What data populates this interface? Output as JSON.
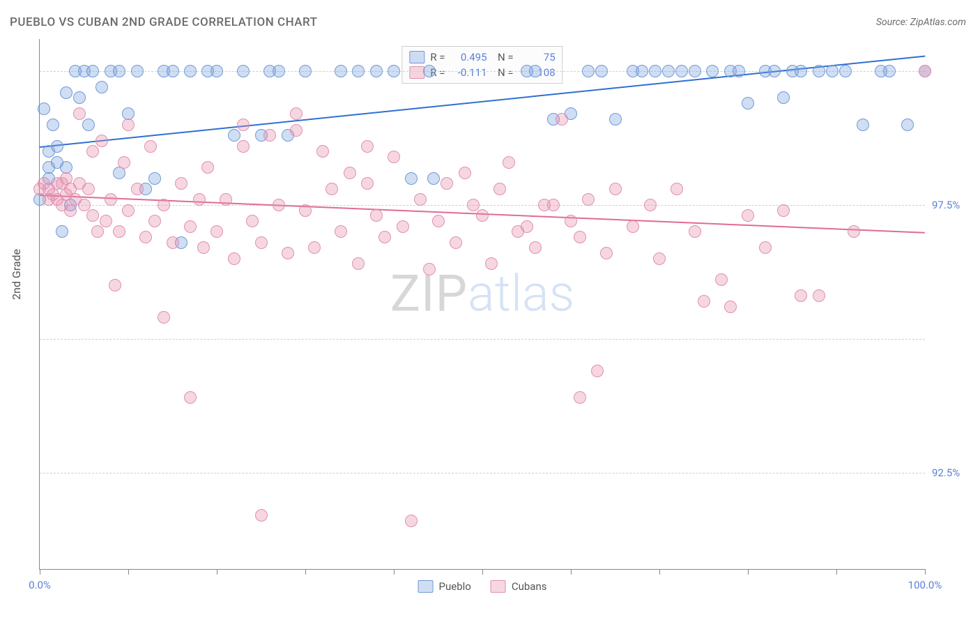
{
  "title": "PUEBLO VS CUBAN 2ND GRADE CORRELATION CHART",
  "source": "Source: ZipAtlas.com",
  "y_axis_label": "2nd Grade",
  "watermark": {
    "left": "ZIP",
    "right": "atlas"
  },
  "chart": {
    "type": "scatter",
    "xlim": [
      0,
      100
    ],
    "ylim": [
      90.7,
      100.6
    ],
    "x_ticks": [
      0,
      10,
      20,
      30,
      40,
      50,
      60,
      70,
      80,
      90,
      100
    ],
    "x_tick_labels": {
      "0": "0.0%",
      "100": "100.0%"
    },
    "y_ticks": [
      92.5,
      95.0,
      97.5,
      100.0
    ],
    "y_tick_labels": {
      "92.5": "92.5%",
      "95.0": "95.0%",
      "97.5": "97.5%",
      "100.0": "100.0%"
    },
    "grid_color": "#cfcfcf",
    "background_color": "#ffffff",
    "series": {
      "pueblo": {
        "label": "Pueblo",
        "fill": "rgba(120,160,220,0.35)",
        "stroke": "#6f99d8",
        "trend": {
          "x1": 0,
          "y1": 98.6,
          "x2": 100,
          "y2": 100.3,
          "color": "#2f6fd0",
          "width": 2
        },
        "r_label": "0.495",
        "n_label": "75",
        "points": [
          [
            0,
            97.6
          ],
          [
            0.5,
            99.3
          ],
          [
            1,
            98.0
          ],
          [
            1,
            98.2
          ],
          [
            1,
            98.5
          ],
          [
            1.5,
            99.0
          ],
          [
            2,
            98.3
          ],
          [
            2,
            98.6
          ],
          [
            2.5,
            97.0
          ],
          [
            3,
            98.2
          ],
          [
            3,
            99.6
          ],
          [
            3.5,
            97.5
          ],
          [
            4,
            100
          ],
          [
            4.5,
            99.5
          ],
          [
            5,
            100
          ],
          [
            5.5,
            99.0
          ],
          [
            6,
            100
          ],
          [
            7,
            99.7
          ],
          [
            8,
            100
          ],
          [
            9,
            98.1
          ],
          [
            9,
            100
          ],
          [
            10,
            99.2
          ],
          [
            11,
            100
          ],
          [
            12,
            97.8
          ],
          [
            13,
            98.0
          ],
          [
            14,
            100
          ],
          [
            15,
            100
          ],
          [
            16,
            96.8
          ],
          [
            17,
            100
          ],
          [
            19,
            100
          ],
          [
            20,
            100
          ],
          [
            22,
            98.8
          ],
          [
            23,
            100
          ],
          [
            25,
            98.8
          ],
          [
            26,
            100
          ],
          [
            27,
            100
          ],
          [
            28,
            98.8
          ],
          [
            30,
            100
          ],
          [
            34,
            100
          ],
          [
            36,
            100
          ],
          [
            38,
            100
          ],
          [
            40,
            100
          ],
          [
            42,
            98.0
          ],
          [
            44,
            100
          ],
          [
            44.5,
            98.0
          ],
          [
            55,
            100
          ],
          [
            56,
            100
          ],
          [
            58,
            99.1
          ],
          [
            60,
            99.2
          ],
          [
            62,
            100
          ],
          [
            63.5,
            100
          ],
          [
            65,
            99.1
          ],
          [
            67,
            100
          ],
          [
            68,
            100
          ],
          [
            69.5,
            100
          ],
          [
            71,
            100
          ],
          [
            72.5,
            100
          ],
          [
            74,
            100
          ],
          [
            76,
            100
          ],
          [
            78,
            100
          ],
          [
            79,
            100
          ],
          [
            80,
            99.4
          ],
          [
            82,
            100
          ],
          [
            83,
            100
          ],
          [
            84,
            99.5
          ],
          [
            85,
            100
          ],
          [
            86,
            100
          ],
          [
            88,
            100
          ],
          [
            89.5,
            100
          ],
          [
            91,
            100
          ],
          [
            93,
            99.0
          ],
          [
            95,
            100
          ],
          [
            96,
            100
          ],
          [
            98,
            99.0
          ],
          [
            100,
            100
          ]
        ]
      },
      "cubans": {
        "label": "Cubans",
        "fill": "rgba(230,140,170,0.35)",
        "stroke": "#e08fb0",
        "trend": {
          "x1": 0,
          "y1": 97.7,
          "x2": 100,
          "y2": 97.0,
          "color": "#e06a98",
          "width": 2
        },
        "r_label": "-0.111",
        "n_label": "108",
        "points": [
          [
            0,
            97.8
          ],
          [
            0.5,
            97.9
          ],
          [
            1,
            97.6
          ],
          [
            1,
            97.8
          ],
          [
            1.5,
            97.7
          ],
          [
            2,
            97.9
          ],
          [
            2,
            97.6
          ],
          [
            2.5,
            97.5
          ],
          [
            2.5,
            97.9
          ],
          [
            3,
            97.7
          ],
          [
            3,
            98.0
          ],
          [
            3.5,
            97.4
          ],
          [
            3.5,
            97.8
          ],
          [
            4,
            97.6
          ],
          [
            4.5,
            97.9
          ],
          [
            4.5,
            99.2
          ],
          [
            5,
            97.5
          ],
          [
            5.5,
            97.8
          ],
          [
            6,
            97.3
          ],
          [
            6,
            98.5
          ],
          [
            6.5,
            97.0
          ],
          [
            7,
            98.7
          ],
          [
            7.5,
            97.2
          ],
          [
            8,
            97.6
          ],
          [
            8.5,
            96.0
          ],
          [
            9,
            97.0
          ],
          [
            9.5,
            98.3
          ],
          [
            10,
            97.4
          ],
          [
            10,
            99.0
          ],
          [
            11,
            97.8
          ],
          [
            12,
            96.9
          ],
          [
            12.5,
            98.6
          ],
          [
            13,
            97.2
          ],
          [
            14,
            97.5
          ],
          [
            14,
            95.4
          ],
          [
            15,
            96.8
          ],
          [
            16,
            97.9
          ],
          [
            17,
            93.9
          ],
          [
            17,
            97.1
          ],
          [
            18,
            97.6
          ],
          [
            18.5,
            96.7
          ],
          [
            19,
            98.2
          ],
          [
            20,
            97.0
          ],
          [
            21,
            97.6
          ],
          [
            22,
            96.5
          ],
          [
            23,
            98.6
          ],
          [
            23,
            99.0
          ],
          [
            24,
            97.2
          ],
          [
            25,
            96.8
          ],
          [
            25,
            91.7
          ],
          [
            26,
            98.8
          ],
          [
            27,
            97.5
          ],
          [
            28,
            96.6
          ],
          [
            29,
            98.9
          ],
          [
            29,
            99.2
          ],
          [
            30,
            97.4
          ],
          [
            31,
            96.7
          ],
          [
            32,
            98.5
          ],
          [
            33,
            97.8
          ],
          [
            34,
            97.0
          ],
          [
            35,
            98.1
          ],
          [
            36,
            96.4
          ],
          [
            37,
            97.9
          ],
          [
            37,
            98.6
          ],
          [
            38,
            97.3
          ],
          [
            39,
            96.9
          ],
          [
            40,
            98.4
          ],
          [
            41,
            97.1
          ],
          [
            42,
            91.6
          ],
          [
            43,
            97.6
          ],
          [
            44,
            96.3
          ],
          [
            45,
            97.2
          ],
          [
            46,
            97.9
          ],
          [
            47,
            96.8
          ],
          [
            48,
            98.1
          ],
          [
            49,
            97.5
          ],
          [
            50,
            97.3
          ],
          [
            51,
            96.4
          ],
          [
            52,
            97.8
          ],
          [
            53,
            98.3
          ],
          [
            54,
            97.0
          ],
          [
            55,
            97.1
          ],
          [
            56,
            96.7
          ],
          [
            57,
            97.5
          ],
          [
            58,
            97.5
          ],
          [
            59,
            99.1
          ],
          [
            60,
            97.2
          ],
          [
            61,
            96.9
          ],
          [
            61,
            93.9
          ],
          [
            62,
            97.6
          ],
          [
            63,
            94.4
          ],
          [
            64,
            96.6
          ],
          [
            65,
            97.8
          ],
          [
            67,
            97.1
          ],
          [
            69,
            97.5
          ],
          [
            70,
            96.5
          ],
          [
            72,
            97.8
          ],
          [
            74,
            97.0
          ],
          [
            75,
            95.7
          ],
          [
            77,
            96.1
          ],
          [
            78,
            95.6
          ],
          [
            80,
            97.3
          ],
          [
            82,
            96.7
          ],
          [
            84,
            97.4
          ],
          [
            86,
            95.8
          ],
          [
            88,
            95.8
          ],
          [
            92,
            97.0
          ],
          [
            100,
            100
          ]
        ]
      }
    },
    "legend_bottom": [
      "pueblo",
      "cubans"
    ]
  }
}
